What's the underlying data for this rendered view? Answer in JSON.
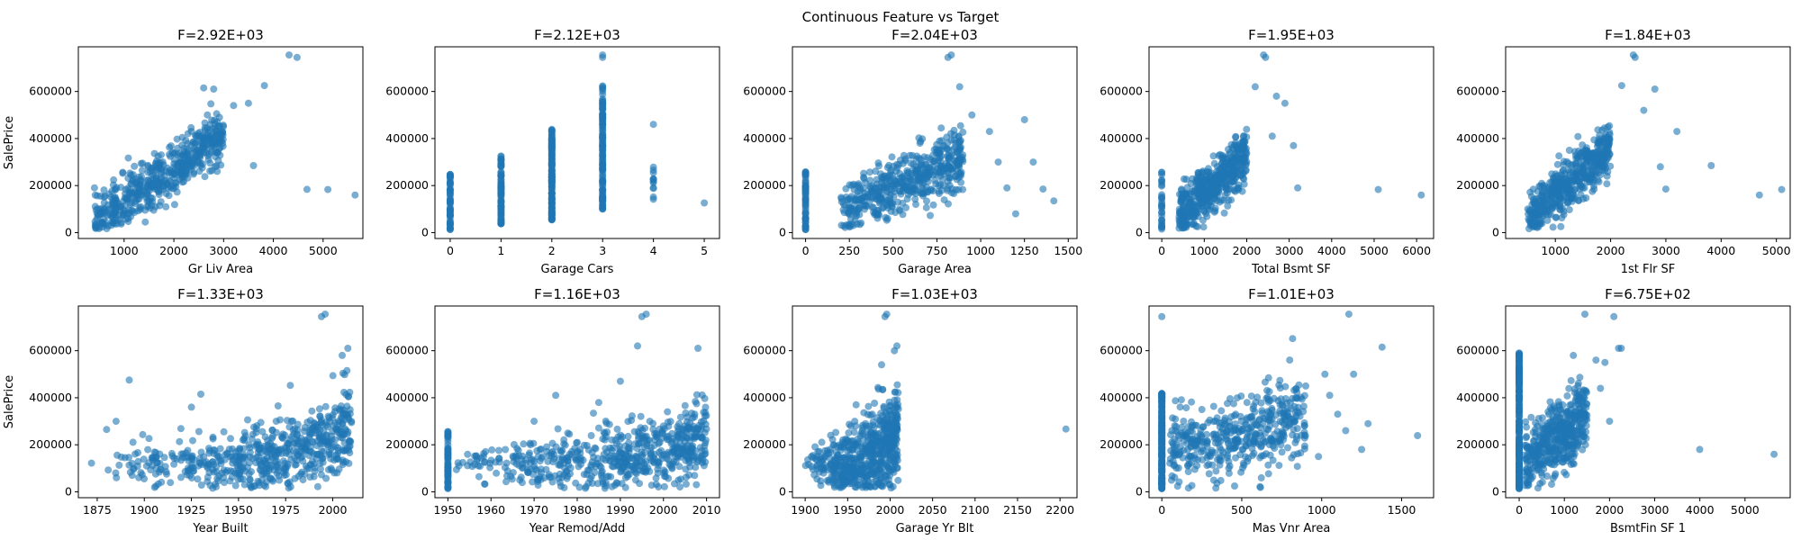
{
  "figure": {
    "suptitle": "Continuous Feature vs Target",
    "point_color": "#1f77b4",
    "point_opacity": 0.6
  },
  "chart_data": [
    {
      "type": "scatter",
      "title": "F=2.92E+03",
      "xlabel": "Gr Liv Area",
      "ylabel": "SalePrice",
      "xlim": [
        80,
        5800
      ],
      "ylim": [
        -25000,
        790000
      ],
      "xticks": [
        1000,
        2000,
        3000,
        4000,
        5000
      ],
      "yticks": [
        0,
        200000,
        400000,
        600000
      ],
      "trend": {
        "kind": "linear",
        "x0": 400,
        "y0": 40000,
        "x1": 3000,
        "y1": 420000,
        "spread": 55000,
        "n": 550
      },
      "points": [
        [
          4476,
          745000
        ],
        [
          4316,
          755000
        ],
        [
          4676,
          184000
        ],
        [
          5095,
          183000
        ],
        [
          5642,
          160000
        ],
        [
          3820,
          625000
        ],
        [
          3500,
          550000
        ],
        [
          3200,
          540000
        ],
        [
          2800,
          610000
        ],
        [
          2600,
          615000
        ],
        [
          3600,
          285000
        ],
        [
          2900,
          380000
        ]
      ]
    },
    {
      "type": "scatter",
      "title": "F=2.12E+03",
      "xlabel": "Garage Cars",
      "ylabel": "",
      "xlim": [
        -0.3,
        5.3
      ],
      "ylim": [
        -25000,
        790000
      ],
      "xticks": [
        0,
        1,
        2,
        3,
        4,
        5
      ],
      "yticks": [
        0,
        200000,
        400000,
        600000
      ],
      "stacks": [
        {
          "x": 0,
          "lo": 13000,
          "hi": 255000,
          "n": 60
        },
        {
          "x": 1,
          "lo": 35000,
          "hi": 330000,
          "n": 90
        },
        {
          "x": 2,
          "lo": 50000,
          "hi": 440000,
          "n": 150
        },
        {
          "x": 3,
          "lo": 100000,
          "hi": 625000,
          "n": 130
        },
        {
          "x": 4,
          "lo": 130000,
          "hi": 290000,
          "n": 12
        }
      ],
      "points": [
        [
          3,
          745000
        ],
        [
          3,
          755000
        ],
        [
          4,
          460000
        ],
        [
          5,
          126000
        ]
      ]
    },
    {
      "type": "scatter",
      "title": "F=2.04E+03",
      "xlabel": "Garage Area",
      "ylabel": "",
      "xlim": [
        -75,
        1550
      ],
      "ylim": [
        -25000,
        790000
      ],
      "xticks": [
        0,
        250,
        500,
        750,
        1000,
        1250,
        1500
      ],
      "yticks": [
        0,
        200000,
        400000,
        600000
      ],
      "stacks": [
        {
          "x": 0,
          "lo": 13000,
          "hi": 260000,
          "n": 60
        }
      ],
      "trend": {
        "kind": "linear",
        "x0": 200,
        "y0": 90000,
        "x1": 900,
        "y1": 320000,
        "spread": 65000,
        "n": 500
      },
      "points": [
        [
          813,
          745000
        ],
        [
          832,
          755000
        ],
        [
          1418,
          135000
        ],
        [
          1356,
          185000
        ],
        [
          1200,
          80000
        ],
        [
          1250,
          480000
        ],
        [
          1100,
          300000
        ],
        [
          1050,
          430000
        ],
        [
          950,
          500000
        ],
        [
          880,
          620000
        ],
        [
          1300,
          300000
        ],
        [
          1150,
          190000
        ]
      ]
    },
    {
      "type": "scatter",
      "title": "F=1.95E+03",
      "xlabel": "Total Bsmt SF",
      "ylabel": "",
      "xlim": [
        -300,
        6400
      ],
      "ylim": [
        -25000,
        790000
      ],
      "xticks": [
        0,
        1000,
        2000,
        3000,
        4000,
        5000,
        6000
      ],
      "yticks": [
        0,
        200000,
        400000,
        600000
      ],
      "stacks": [
        {
          "x": 0,
          "lo": 13000,
          "hi": 270000,
          "n": 30
        }
      ],
      "trend": {
        "kind": "linear",
        "x0": 400,
        "y0": 70000,
        "x1": 2000,
        "y1": 330000,
        "spread": 55000,
        "n": 500
      },
      "points": [
        [
          2444,
          745000
        ],
        [
          2396,
          755000
        ],
        [
          5095,
          183000
        ],
        [
          6110,
          160000
        ],
        [
          3200,
          190000
        ],
        [
          3100,
          370000
        ],
        [
          2900,
          550000
        ],
        [
          2700,
          580000
        ],
        [
          2600,
          410000
        ],
        [
          2200,
          620000
        ]
      ]
    },
    {
      "type": "scatter",
      "title": "F=1.84E+03",
      "xlabel": "1st Flr SF",
      "ylabel": "",
      "xlim": [
        100,
        5250
      ],
      "ylim": [
        -25000,
        790000
      ],
      "xticks": [
        1000,
        2000,
        3000,
        4000,
        5000
      ],
      "yticks": [
        0,
        200000,
        400000,
        600000
      ],
      "trend": {
        "kind": "linear",
        "x0": 500,
        "y0": 60000,
        "x1": 2000,
        "y1": 350000,
        "spread": 55000,
        "n": 500
      },
      "points": [
        [
          2444,
          745000
        ],
        [
          2411,
          755000
        ],
        [
          4692,
          160000
        ],
        [
          5095,
          183000
        ],
        [
          3820,
          285000
        ],
        [
          3200,
          430000
        ],
        [
          2900,
          280000
        ],
        [
          2600,
          520000
        ],
        [
          2800,
          610000
        ],
        [
          2200,
          625000
        ],
        [
          3000,
          185000
        ]
      ]
    },
    {
      "type": "scatter",
      "title": "F=1.33E+03",
      "xlabel": "Year Built",
      "ylabel": "SalePrice",
      "xlim": [
        1865,
        2016
      ],
      "ylim": [
        -25000,
        790000
      ],
      "xticks": [
        1875,
        1900,
        1925,
        1950,
        1975,
        2000
      ],
      "yticks": [
        0,
        200000,
        400000,
        600000
      ],
      "trend": {
        "kind": "exp",
        "x0": 1880,
        "x1": 2010,
        "ybase": 110000,
        "ytop": 280000,
        "spread": 60000,
        "n": 600
      },
      "points": [
        [
          1994,
          745000
        ],
        [
          1996,
          755000
        ],
        [
          1892,
          475000
        ],
        [
          1880,
          265000
        ],
        [
          1885,
          300000
        ],
        [
          1872,
          122000
        ],
        [
          1930,
          415000
        ],
        [
          1925,
          360000
        ],
        [
          2008,
          610000
        ],
        [
          2005,
          580000
        ],
        [
          1970,
          300000
        ]
      ]
    },
    {
      "type": "scatter",
      "title": "F=1.16E+03",
      "xlabel": "Year Remod/Add",
      "ylabel": "",
      "xlim": [
        1947,
        2013
      ],
      "ylim": [
        -25000,
        790000
      ],
      "xticks": [
        1950,
        1960,
        1970,
        1980,
        1990,
        2000,
        2010
      ],
      "yticks": [
        0,
        200000,
        400000,
        600000
      ],
      "stacks": [
        {
          "x": 1950,
          "lo": 13000,
          "hi": 260000,
          "n": 70
        }
      ],
      "trend": {
        "kind": "exp",
        "x0": 1951,
        "x1": 2010,
        "ybase": 120000,
        "ytop": 250000,
        "spread": 55000,
        "n": 600
      },
      "points": [
        [
          1995,
          745000
        ],
        [
          1996,
          755000
        ],
        [
          1994,
          620000
        ],
        [
          2008,
          610000
        ],
        [
          1990,
          470000
        ],
        [
          1970,
          300000
        ],
        [
          1975,
          410000
        ],
        [
          1985,
          380000
        ]
      ]
    },
    {
      "type": "scatter",
      "title": "F=1.03E+03",
      "xlabel": "Garage Yr Blt",
      "ylabel": "",
      "xlim": [
        1885,
        2220
      ],
      "ylim": [
        -25000,
        790000
      ],
      "xticks": [
        1900,
        1950,
        2000,
        2050,
        2100,
        2150,
        2200
      ],
      "yticks": [
        0,
        200000,
        400000,
        600000
      ],
      "trend": {
        "kind": "exp",
        "x0": 1900,
        "x1": 2010,
        "ybase": 110000,
        "ytop": 290000,
        "spread": 65000,
        "n": 600
      },
      "points": [
        [
          1994,
          745000
        ],
        [
          1996,
          755000
        ],
        [
          2207,
          267000
        ],
        [
          2008,
          620000
        ],
        [
          2005,
          600000
        ],
        [
          1990,
          540000
        ],
        [
          1960,
          370000
        ],
        [
          1930,
          240000
        ],
        [
          1915,
          170000
        ]
      ]
    },
    {
      "type": "scatter",
      "title": "F=1.01E+03",
      "xlabel": "Mas Vnr Area",
      "ylabel": "",
      "xlim": [
        -80,
        1700
      ],
      "ylim": [
        -25000,
        790000
      ],
      "xticks": [
        0,
        500,
        1000,
        1500
      ],
      "yticks": [
        0,
        200000,
        400000,
        600000
      ],
      "stacks": [
        {
          "x": 0,
          "lo": 13000,
          "hi": 420000,
          "n": 220
        }
      ],
      "trend": {
        "kind": "linear",
        "x0": 50,
        "y0": 170000,
        "x1": 900,
        "y1": 300000,
        "spread": 85000,
        "n": 450
      },
      "points": [
        [
          0,
          745000
        ],
        [
          1170,
          755000
        ],
        [
          1378,
          615000
        ],
        [
          1600,
          239000
        ],
        [
          1290,
          290000
        ],
        [
          1250,
          180000
        ],
        [
          1100,
          330000
        ],
        [
          1050,
          410000
        ],
        [
          980,
          150000
        ],
        [
          1200,
          500000
        ],
        [
          900,
          450000
        ],
        [
          800,
          560000
        ],
        [
          1150,
          260000
        ],
        [
          1020,
          500000
        ]
      ]
    },
    {
      "type": "scatter",
      "title": "F=6.75E+02",
      "xlabel": "BsmtFin SF 1",
      "ylabel": "",
      "xlim": [
        -300,
        6000
      ],
      "ylim": [
        -25000,
        790000
      ],
      "xticks": [
        0,
        1000,
        2000,
        3000,
        4000,
        5000
      ],
      "yticks": [
        0,
        200000,
        400000,
        600000
      ],
      "stacks": [
        {
          "x": 0,
          "lo": 13000,
          "hi": 590000,
          "n": 220
        }
      ],
      "trend": {
        "kind": "linear",
        "x0": 100,
        "y0": 130000,
        "x1": 1500,
        "y1": 330000,
        "spread": 75000,
        "n": 450
      },
      "points": [
        [
          2096,
          745000
        ],
        [
          1455,
          755000
        ],
        [
          3996,
          180000
        ],
        [
          5644,
          160000
        ],
        [
          2260,
          610000
        ],
        [
          2200,
          610000
        ],
        [
          1900,
          550000
        ],
        [
          1700,
          560000
        ],
        [
          1200,
          580000
        ],
        [
          2000,
          300000
        ],
        [
          1800,
          440000
        ]
      ]
    }
  ]
}
